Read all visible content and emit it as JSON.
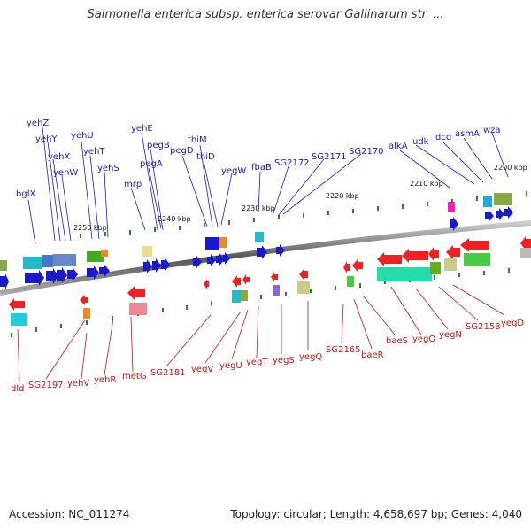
{
  "title": "Salmonella enterica subsp. enterica serovar Gallinarum str. ...",
  "footer": {
    "accession": "Accession: NC_011274",
    "topology": "Topology: circular; Length: 4,658,697 bp; Genes: 4,040"
  },
  "colors": {
    "top_strand": "#1a1acc",
    "bottom_strand": "#cc1111",
    "backbone": "#999999",
    "tick": "#228822"
  },
  "kbp_labels": [
    "2200 kbp",
    "2210 kbp",
    "2220 kbp",
    "2230 kbp",
    "2240 kbp",
    "2250 kbp"
  ],
  "top_genes": [
    "yehZ",
    "yehY",
    "yehX",
    "yehW",
    "yehU",
    "yehT",
    "yehS",
    "bglX",
    "mrp",
    "yehE",
    "pegB",
    "pegA",
    "pegD",
    "thiM",
    "thiD",
    "yegW",
    "fbaB",
    "SG2172",
    "SG2171",
    "SG2170",
    "alkA",
    "udk",
    "dcd",
    "asmA",
    "wza"
  ],
  "bottom_genes": [
    "dld",
    "SG2197",
    "yehV",
    "yehR",
    "metG",
    "SG2181",
    "yegV",
    "yegU",
    "yegT",
    "yegS",
    "yegQ",
    "SG2165",
    "baeR",
    "baeS",
    "yegO",
    "yegN",
    "SG2158",
    "yegD"
  ]
}
